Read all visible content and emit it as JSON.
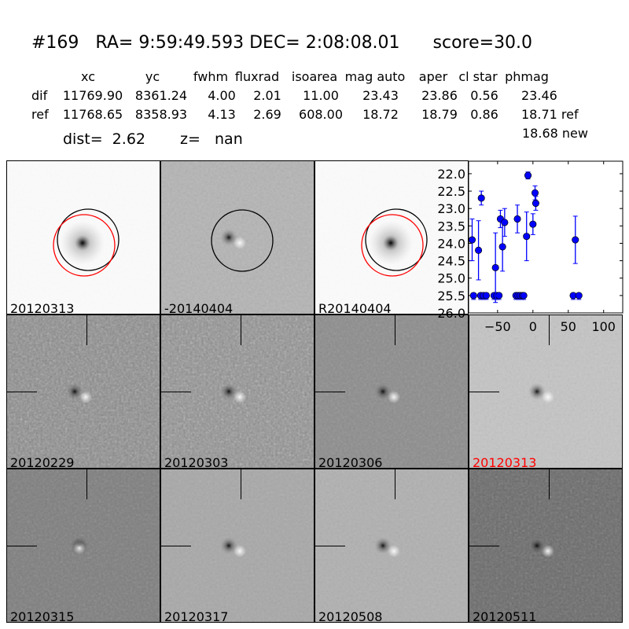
{
  "header": {
    "id": "#169",
    "ra_label": "RA=",
    "ra": "9:59:49.593",
    "dec_label": "DEC=",
    "dec": "2:08:08.01",
    "score": "score=30.0"
  },
  "table": {
    "columns": [
      "xc",
      "yc",
      "fwhm",
      "fluxrad",
      "isoarea",
      "mag auto",
      "aper",
      "cl star",
      "phmag"
    ],
    "rows": [
      {
        "label": "dif",
        "values": [
          "11769.90",
          "8361.24",
          "4.00",
          "2.01",
          "11.00",
          "23.43",
          "23.86",
          "0.56",
          "23.46"
        ]
      },
      {
        "label": "ref",
        "values": [
          "11768.65",
          "8358.93",
          "4.13",
          "2.69",
          "608.00",
          "18.72",
          "18.79",
          "0.86",
          "18.71 ref"
        ]
      }
    ],
    "extra": "18.68 new",
    "dist": "dist=  2.62",
    "z": "z=   nan"
  },
  "panels": [
    {
      "label": "20120313",
      "color": "#000000"
    },
    {
      "label": "-20140404",
      "color": "#000000"
    },
    {
      "label": "R20140404",
      "color": "#000000"
    },
    {
      "label": "20120229",
      "color": "#000000"
    },
    {
      "label": "20120303",
      "color": "#000000"
    },
    {
      "label": "20120306",
      "color": "#000000"
    },
    {
      "label": "20120313",
      "color": "#ff0000"
    },
    {
      "label": "20120315",
      "color": "#000000"
    },
    {
      "label": "20120317",
      "color": "#000000"
    },
    {
      "label": "20120508",
      "color": "#000000"
    },
    {
      "label": "20120511",
      "color": "#000000"
    }
  ],
  "chart_data": {
    "type": "scatter",
    "xlim": [
      -91,
      127
    ],
    "ylim": [
      26.0,
      21.64
    ],
    "y_inverted": true,
    "xticks": [
      "-50",
      "0",
      "50",
      "100"
    ],
    "xtick_values": [
      -50,
      0,
      50,
      100
    ],
    "yticks": [
      "22.0",
      "22.5",
      "23.0",
      "23.5",
      "24.0",
      "24.5",
      "25.0",
      "25.5",
      "26.0"
    ],
    "ytick_values": [
      22.0,
      22.5,
      23.0,
      23.5,
      24.0,
      24.5,
      25.0,
      25.5,
      26.0
    ],
    "color": "#0000ff",
    "points": [
      {
        "x": -86,
        "y": 23.9,
        "err": 0.6
      },
      {
        "x": -77,
        "y": 24.2,
        "err": 0.85
      },
      {
        "x": -73,
        "y": 22.7,
        "err": 0.2
      },
      {
        "x": -53,
        "y": 24.7,
        "err": 1.0
      },
      {
        "x": -46,
        "y": 23.3,
        "err": 0.25
      },
      {
        "x": -43,
        "y": 24.1,
        "err": 0.7
      },
      {
        "x": -40,
        "y": 23.4,
        "err": 0.4
      },
      {
        "x": -22,
        "y": 23.3,
        "err": 0.4
      },
      {
        "x": -9,
        "y": 23.8,
        "err": 0.7
      },
      {
        "x": -7,
        "y": 22.05,
        "err": 0.1
      },
      {
        "x": 0,
        "y": 23.45,
        "err": 0.3
      },
      {
        "x": 3,
        "y": 22.55,
        "err": 0.2
      },
      {
        "x": 4,
        "y": 22.85,
        "err": 0.2
      },
      {
        "x": 60,
        "y": 23.9,
        "err": 0.68
      }
    ],
    "limits": [
      {
        "x": -84,
        "y": 25.5
      },
      {
        "x": -74,
        "y": 25.5
      },
      {
        "x": -70,
        "y": 25.5
      },
      {
        "x": -66,
        "y": 25.5
      },
      {
        "x": -55,
        "y": 25.5
      },
      {
        "x": -51,
        "y": 25.5
      },
      {
        "x": -48,
        "y": 25.5
      },
      {
        "x": -24,
        "y": 25.5
      },
      {
        "x": -21,
        "y": 25.5
      },
      {
        "x": -18,
        "y": 25.5
      },
      {
        "x": -15,
        "y": 25.5
      },
      {
        "x": -13,
        "y": 25.5
      },
      {
        "x": 57,
        "y": 25.5
      },
      {
        "x": 65,
        "y": 25.5
      }
    ]
  }
}
